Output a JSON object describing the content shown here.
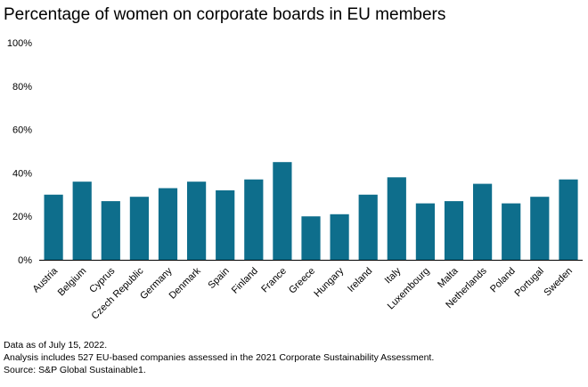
{
  "title": "Percentage of women on corporate boards in EU members",
  "footnotes": [
    "Data as of July 15, 2022.",
    "Analysis includes 527 EU-based companies assessed in the 2021 Corporate Sustainability Assessment.",
    "Source: S&P Global Sustainable1."
  ],
  "chart_data": {
    "type": "bar",
    "title": "Percentage of women on corporate boards in EU members",
    "xlabel": "",
    "ylabel": "",
    "ylim": [
      0,
      100
    ],
    "yticks": [
      "0%",
      "20%",
      "40%",
      "60%",
      "80%",
      "100%"
    ],
    "grid": false,
    "legend": "none",
    "bar_color": "#0e6e8c",
    "categories": [
      "Austria",
      "Belgium",
      "Cyprus",
      "Czech Republic",
      "Germany",
      "Denmark",
      "Spain",
      "Finland",
      "France",
      "Greece",
      "Hungary",
      "Ireland",
      "Italy",
      "Luxembourg",
      "Malta",
      "Netherlands",
      "Poland",
      "Portugal",
      "Sweden"
    ],
    "values": [
      30,
      36,
      27,
      29,
      33,
      36,
      32,
      37,
      45,
      20,
      21,
      30,
      38,
      26,
      27,
      35,
      26,
      29,
      37
    ]
  }
}
